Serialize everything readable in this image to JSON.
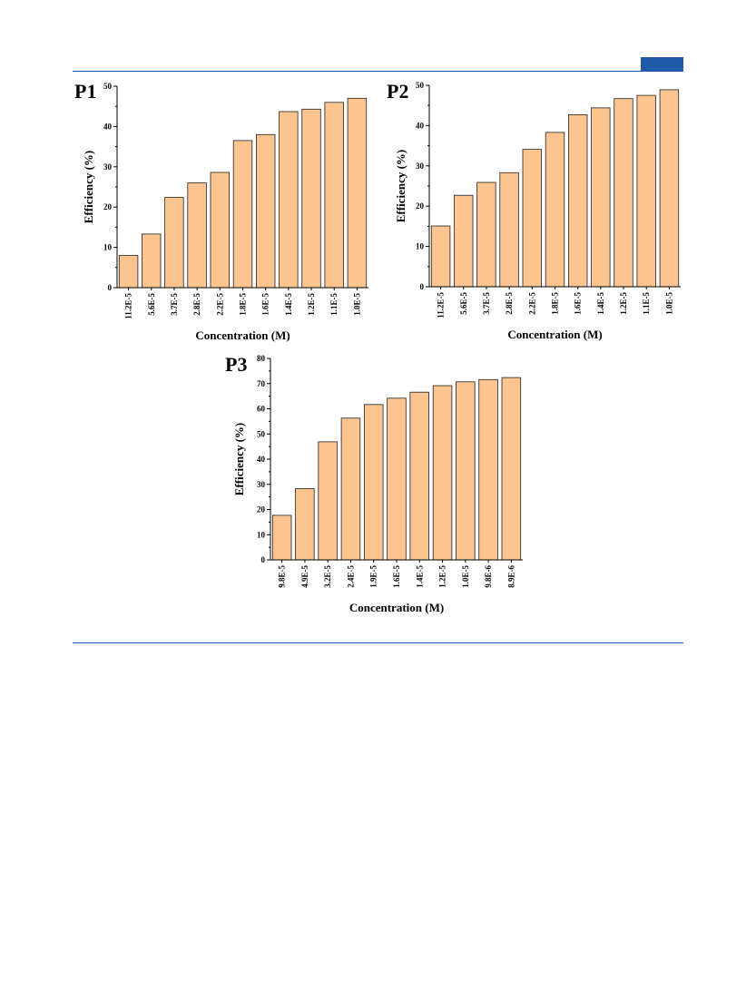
{
  "page": {
    "accent_color": "#1f5aa8",
    "bar_fill": "#fcc590",
    "bar_stroke": "#222222"
  },
  "chart_data": [
    {
      "type": "bar",
      "panel_label": "P1",
      "categories": [
        "11.2E-5",
        "5.6E-5",
        "3.7E-5",
        "2.8E-5",
        "2.2E-5",
        "1.8E-5",
        "1.6E-5",
        "1.4E-5",
        "1.2E-5",
        "1.1E-5",
        "1.0E-5"
      ],
      "values": [
        8.0,
        13.3,
        22.4,
        26.0,
        28.6,
        36.5,
        38.0,
        43.7,
        44.3,
        46.0,
        47.0
      ],
      "xlabel": "Concentration (M)",
      "ylabel": "Efficiency (%)",
      "ylim": [
        0,
        50
      ],
      "yticks": [
        0,
        10,
        20,
        30,
        40,
        50
      ]
    },
    {
      "type": "bar",
      "panel_label": "P2",
      "categories": [
        "11.2E-5",
        "5.6E-5",
        "3.7E-5",
        "2.8E-5",
        "2.2E-5",
        "1.8E-5",
        "1.6E-5",
        "1.4E-5",
        "1.2E-5",
        "1.1E-5",
        "1.0E-5"
      ],
      "values": [
        15.1,
        22.7,
        25.9,
        28.3,
        34.1,
        38.3,
        42.7,
        44.4,
        46.7,
        47.5,
        48.9
      ],
      "xlabel": "Concentration (M)",
      "ylabel": "Efficiency (%)",
      "ylim": [
        0,
        50
      ],
      "yticks": [
        0,
        10,
        20,
        30,
        40,
        50
      ]
    },
    {
      "type": "bar",
      "panel_label": "P3",
      "categories": [
        "9.8E-5",
        "4.9E-5",
        "3.2E-5",
        "2.4E-5",
        "1.9E-5",
        "1.6E-5",
        "1.4E-5",
        "1.2E-5",
        "1.0E-5",
        "9.8E-6",
        "8.9E-6"
      ],
      "values": [
        17.7,
        28.3,
        46.9,
        56.3,
        61.7,
        64.2,
        66.6,
        69.2,
        70.7,
        71.6,
        72.4
      ],
      "xlabel": "Concentration (M)",
      "ylabel": "Efficiency (%)",
      "ylim": [
        0,
        80
      ],
      "yticks": [
        0,
        10,
        20,
        30,
        40,
        50,
        60,
        70,
        80
      ]
    }
  ]
}
